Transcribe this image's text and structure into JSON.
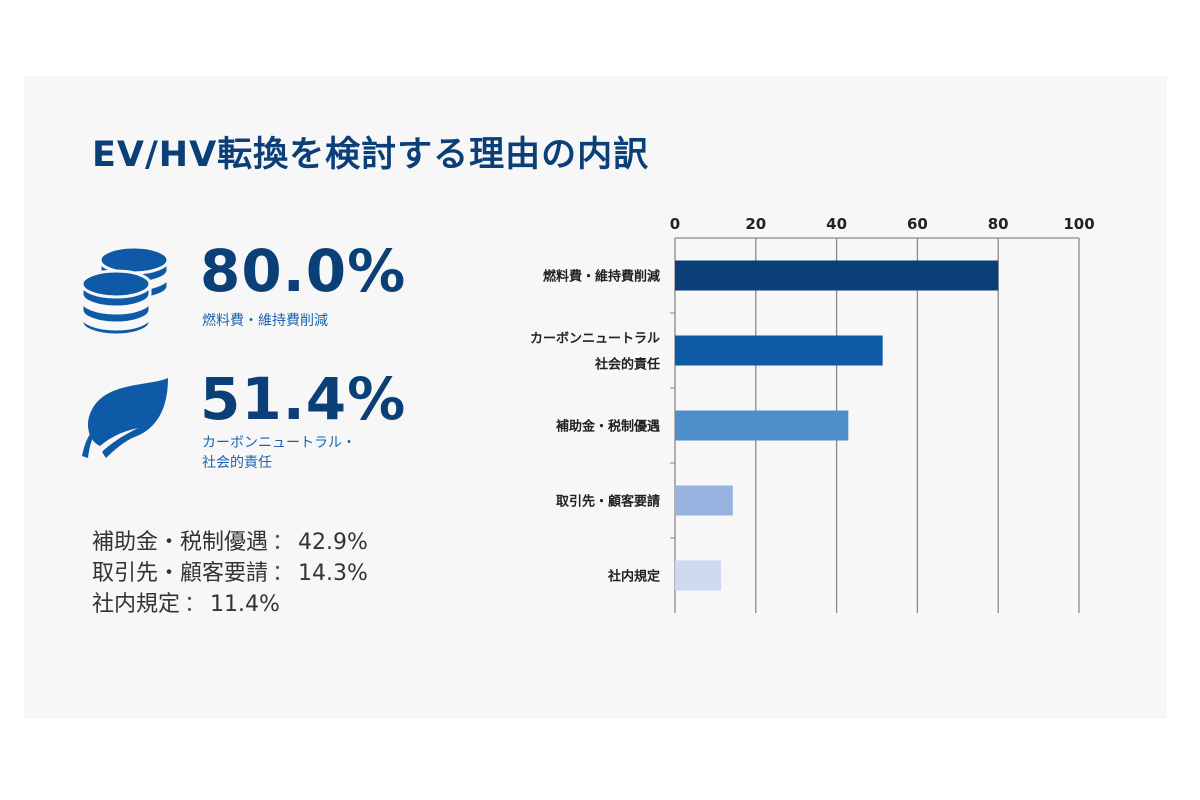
{
  "title": "EV/HV転換を検討する理由の内訳",
  "highlights": [
    {
      "value": "80.0%",
      "label": "燃料費・維持費削減",
      "icon": "coin-stack-icon"
    },
    {
      "value": "51.4%",
      "label_lines": [
        "カーボンニュートラル・",
        "社会的責任"
      ],
      "icon": "leaf-icon"
    }
  ],
  "others": [
    {
      "name": "補助金・税制優遇",
      "value": "42.9%"
    },
    {
      "name": "取引先・顧客要請",
      "value": "14.3%"
    },
    {
      "name": "社内規定",
      "value": "11.4%"
    }
  ],
  "separator": "：",
  "colors": {
    "title": "#0a3f78",
    "accent": "#1b63b0",
    "icon": "#0f5aa6"
  },
  "chart_data": {
    "type": "bar",
    "orientation": "horizontal",
    "categories": [
      [
        "燃料費・維持費削減"
      ],
      [
        "カーボンニュートラル",
        "社会的責任"
      ],
      [
        "補助金・税制優遇"
      ],
      [
        "取引先・顧客要請"
      ],
      [
        "社内規定"
      ]
    ],
    "values": [
      80.0,
      51.4,
      42.9,
      14.3,
      11.4
    ],
    "colors": [
      "#0a3f78",
      "#0f5aa6",
      "#4f8fc9",
      "#98b3e0",
      "#ccd9ee"
    ],
    "xlim": [
      0,
      100
    ],
    "xticks": [
      0,
      20,
      40,
      60,
      80,
      100
    ],
    "axis_position": "top",
    "grid": true
  }
}
